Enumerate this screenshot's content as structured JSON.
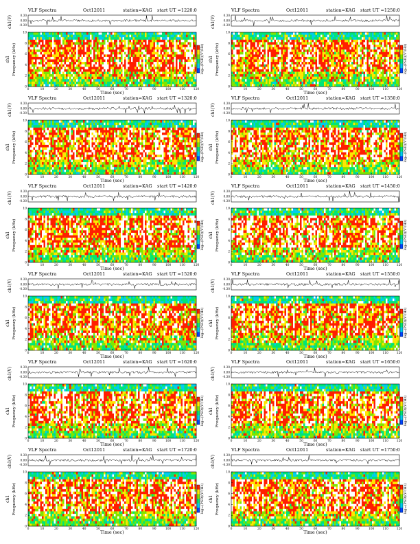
{
  "common": {
    "figure_label": "VLF Spectra",
    "date": "Oct12011",
    "station": "station=KAG",
    "start_prefix": "start  UT  =",
    "top_ylabel": "ch1(V)",
    "top_yticks": [
      "0.30",
      "0.00",
      "-0.30"
    ],
    "spec_ylabel": "Frequency  (kHz)",
    "spec_ylabel_prefix": "ch1",
    "spec_yticks": [
      "0",
      "2",
      "4",
      "6",
      "8",
      "10"
    ],
    "xlabel": "Time  (sec)",
    "xticks": [
      "0",
      "10",
      "20",
      "30",
      "40",
      "50",
      "60",
      "70",
      "80",
      "90",
      "100",
      "110",
      "120"
    ],
    "cbar_label": "log₁₀(PSD)(V²/Hz)",
    "cbar_ticks": [
      "1",
      "-1"
    ],
    "colors": [
      "#ffffff",
      "#ff1e00",
      "#ffe600",
      "#7fe600",
      "#00e676",
      "#00ccee",
      "#0044ff"
    ]
  },
  "chart_data": [
    {
      "type": "heatmap",
      "start_ut": "1220:0",
      "xlim": [
        0,
        120
      ],
      "ylim": [
        0,
        10
      ],
      "ylim_waveform": [
        -0.3,
        0.3
      ]
    },
    {
      "type": "heatmap",
      "start_ut": "1250:0",
      "xlim": [
        0,
        120
      ],
      "ylim": [
        0,
        10
      ],
      "ylim_waveform": [
        -0.3,
        0.3
      ]
    },
    {
      "type": "heatmap",
      "start_ut": "1320:0",
      "xlim": [
        0,
        120
      ],
      "ylim": [
        0,
        10
      ],
      "ylim_waveform": [
        -0.3,
        0.3
      ]
    },
    {
      "type": "heatmap",
      "start_ut": "1350:0",
      "xlim": [
        0,
        120
      ],
      "ylim": [
        0,
        10
      ],
      "ylim_waveform": [
        -0.3,
        0.3
      ]
    },
    {
      "type": "heatmap",
      "start_ut": "1420:0",
      "xlim": [
        0,
        120
      ],
      "ylim": [
        0,
        10
      ],
      "ylim_waveform": [
        -0.3,
        0.3
      ]
    },
    {
      "type": "heatmap",
      "start_ut": "1450:0",
      "xlim": [
        0,
        120
      ],
      "ylim": [
        0,
        10
      ],
      "ylim_waveform": [
        -0.3,
        0.3
      ]
    },
    {
      "type": "heatmap",
      "start_ut": "1520:0",
      "xlim": [
        0,
        120
      ],
      "ylim": [
        0,
        10
      ],
      "ylim_waveform": [
        -0.3,
        0.3
      ]
    },
    {
      "type": "heatmap",
      "start_ut": "1550:0",
      "xlim": [
        0,
        120
      ],
      "ylim": [
        0,
        10
      ],
      "ylim_waveform": [
        -0.3,
        0.3
      ]
    },
    {
      "type": "heatmap",
      "start_ut": "1620:0",
      "xlim": [
        0,
        120
      ],
      "ylim": [
        0,
        10
      ],
      "ylim_waveform": [
        -0.3,
        0.3
      ]
    },
    {
      "type": "heatmap",
      "start_ut": "1650:0",
      "xlim": [
        0,
        120
      ],
      "ylim": [
        0,
        10
      ],
      "ylim_waveform": [
        -0.3,
        0.3
      ]
    },
    {
      "type": "heatmap",
      "start_ut": "1720:0",
      "xlim": [
        0,
        120
      ],
      "ylim": [
        0,
        10
      ],
      "ylim_waveform": [
        -0.3,
        0.3
      ]
    },
    {
      "type": "heatmap",
      "start_ut": "1750:0",
      "xlim": [
        0,
        120
      ],
      "ylim": [
        0,
        10
      ],
      "ylim_waveform": [
        -0.3,
        0.3
      ]
    }
  ]
}
